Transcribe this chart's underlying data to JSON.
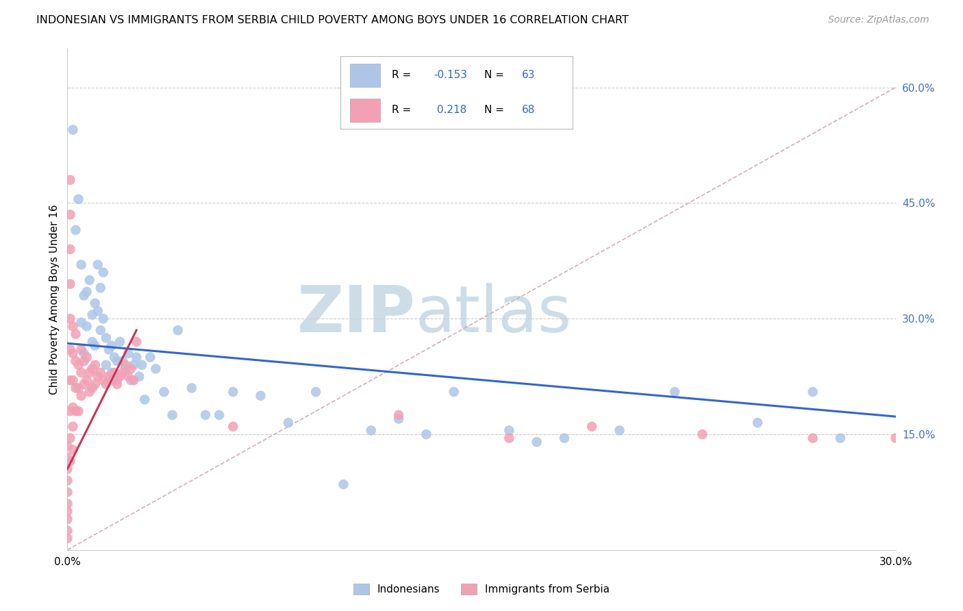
{
  "title": "INDONESIAN VS IMMIGRANTS FROM SERBIA CHILD POVERTY AMONG BOYS UNDER 16 CORRELATION CHART",
  "source": "Source: ZipAtlas.com",
  "ylabel": "Child Poverty Among Boys Under 16",
  "xlim": [
    0.0,
    0.3
  ],
  "ylim": [
    0.0,
    0.65
  ],
  "R_indonesian": -0.153,
  "N_indonesian": 63,
  "R_serbian": 0.218,
  "N_serbian": 68,
  "color_indonesian": "#adc6e8",
  "color_serbian": "#f2a0b4",
  "line_color_indonesian": "#3366cc",
  "line_color_serbian": "#cc3355",
  "diagonal_color": "#d0b0b8",
  "watermark": "ZIPatlas",
  "watermark_color": "#ccdde8",
  "ind_line_x0": 0.0,
  "ind_line_y0": 0.268,
  "ind_line_x1": 0.3,
  "ind_line_y1": 0.173,
  "ser_line_x0": 0.0,
  "ser_line_y0": 0.105,
  "ser_line_x1": 0.025,
  "ser_line_y1": 0.285,
  "indonesian_x": [
    0.002,
    0.003,
    0.004,
    0.005,
    0.005,
    0.006,
    0.006,
    0.007,
    0.007,
    0.008,
    0.009,
    0.009,
    0.01,
    0.01,
    0.011,
    0.011,
    0.012,
    0.012,
    0.013,
    0.013,
    0.014,
    0.014,
    0.015,
    0.016,
    0.016,
    0.017,
    0.018,
    0.018,
    0.019,
    0.02,
    0.021,
    0.022,
    0.023,
    0.024,
    0.025,
    0.026,
    0.027,
    0.028,
    0.03,
    0.032,
    0.035,
    0.038,
    0.04,
    0.045,
    0.05,
    0.055,
    0.06,
    0.07,
    0.08,
    0.09,
    0.12,
    0.14,
    0.16,
    0.2,
    0.22,
    0.25,
    0.27,
    0.28,
    0.17,
    0.18,
    0.1,
    0.11,
    0.13
  ],
  "indonesian_y": [
    0.545,
    0.415,
    0.455,
    0.37,
    0.295,
    0.33,
    0.255,
    0.335,
    0.29,
    0.35,
    0.305,
    0.27,
    0.32,
    0.265,
    0.37,
    0.31,
    0.34,
    0.285,
    0.36,
    0.3,
    0.275,
    0.24,
    0.26,
    0.265,
    0.23,
    0.25,
    0.245,
    0.22,
    0.27,
    0.245,
    0.235,
    0.255,
    0.22,
    0.24,
    0.25,
    0.225,
    0.24,
    0.195,
    0.25,
    0.235,
    0.205,
    0.175,
    0.285,
    0.21,
    0.175,
    0.175,
    0.205,
    0.2,
    0.165,
    0.205,
    0.17,
    0.205,
    0.155,
    0.155,
    0.205,
    0.165,
    0.205,
    0.145,
    0.14,
    0.145,
    0.085,
    0.155,
    0.15
  ],
  "serbian_x": [
    0.0,
    0.0,
    0.0,
    0.0,
    0.0,
    0.0,
    0.0,
    0.0,
    0.0,
    0.0,
    0.001,
    0.001,
    0.001,
    0.001,
    0.001,
    0.001,
    0.001,
    0.001,
    0.001,
    0.001,
    0.002,
    0.002,
    0.002,
    0.002,
    0.002,
    0.002,
    0.003,
    0.003,
    0.003,
    0.003,
    0.004,
    0.004,
    0.004,
    0.005,
    0.005,
    0.005,
    0.006,
    0.006,
    0.007,
    0.007,
    0.008,
    0.008,
    0.009,
    0.009,
    0.01,
    0.01,
    0.011,
    0.012,
    0.013,
    0.014,
    0.015,
    0.016,
    0.017,
    0.018,
    0.019,
    0.02,
    0.021,
    0.022,
    0.023,
    0.024,
    0.025,
    0.06,
    0.12,
    0.16,
    0.19,
    0.23,
    0.27,
    0.3
  ],
  "serbian_y": [
    0.135,
    0.12,
    0.105,
    0.09,
    0.075,
    0.06,
    0.05,
    0.04,
    0.025,
    0.015,
    0.48,
    0.435,
    0.39,
    0.345,
    0.3,
    0.26,
    0.22,
    0.18,
    0.145,
    0.115,
    0.29,
    0.255,
    0.22,
    0.185,
    0.16,
    0.13,
    0.28,
    0.245,
    0.21,
    0.18,
    0.24,
    0.21,
    0.18,
    0.26,
    0.23,
    0.2,
    0.245,
    0.215,
    0.25,
    0.22,
    0.23,
    0.205,
    0.235,
    0.21,
    0.24,
    0.215,
    0.225,
    0.23,
    0.22,
    0.215,
    0.225,
    0.22,
    0.23,
    0.215,
    0.225,
    0.23,
    0.24,
    0.225,
    0.235,
    0.22,
    0.27,
    0.16,
    0.175,
    0.145,
    0.16,
    0.15,
    0.145,
    0.145
  ]
}
